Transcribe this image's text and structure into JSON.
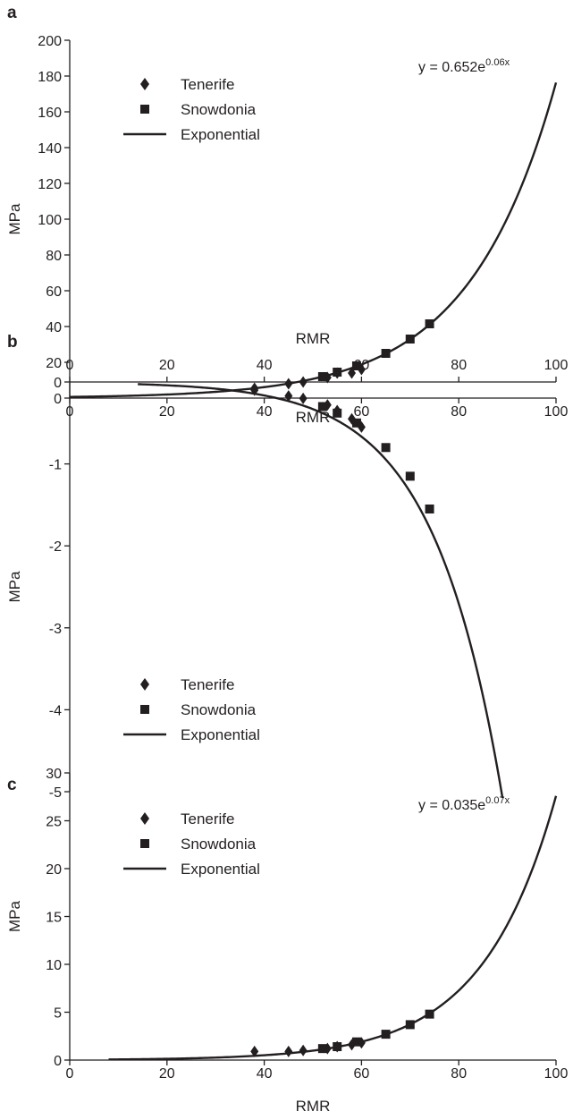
{
  "chart_data": [
    {
      "panel": "a",
      "type": "scatter",
      "xlabel": "RMR",
      "ylabel": "MPa",
      "xlim": [
        0,
        100
      ],
      "ylim": [
        0,
        200
      ],
      "xticks": [
        0,
        20,
        40,
        60,
        80,
        100
      ],
      "yticks": [
        0,
        20,
        40,
        60,
        80,
        100,
        120,
        140,
        160,
        180,
        200
      ],
      "x_axis_position": "bottom",
      "grid": false,
      "legend": {
        "position": "top-left",
        "entries": [
          "Tenerife",
          "Snowdonia",
          "Exponential"
        ]
      },
      "equation": {
        "base": "y = 0.652e",
        "exponent": "0.06x"
      },
      "series": [
        {
          "name": "Tenerife",
          "marker": "diamond",
          "points": [
            [
              38,
              5.5
            ],
            [
              45,
              8
            ],
            [
              48,
              9
            ],
            [
              53,
              11.5
            ],
            [
              55,
              14
            ],
            [
              58,
              14
            ],
            [
              60,
              16
            ]
          ]
        },
        {
          "name": "Snowdonia",
          "marker": "square",
          "points": [
            [
              52,
              12
            ],
            [
              55,
              14.5
            ],
            [
              59,
              18
            ],
            [
              65,
              25
            ],
            [
              70,
              33
            ],
            [
              74,
              41.5
            ]
          ]
        },
        {
          "name": "Exponential",
          "type": "line",
          "coef": 0.652,
          "rate": 0.056,
          "x_range": [
            0,
            100
          ]
        }
      ]
    },
    {
      "panel": "b",
      "type": "scatter",
      "xlabel": "RMR",
      "ylabel": "MPa",
      "xlim": [
        0,
        100
      ],
      "ylim": [
        -5,
        0
      ],
      "xticks": [
        0,
        20,
        40,
        60,
        80,
        100
      ],
      "yticks": [
        0,
        -1,
        -2,
        -3,
        -4,
        -5
      ],
      "x_axis_position": "top",
      "grid": false,
      "legend": {
        "position": "bottom-left",
        "entries": [
          "Tenerife",
          "Snowdonia",
          "Exponential"
        ]
      },
      "series": [
        {
          "name": "Tenerife",
          "marker": "diamond",
          "points": [
            [
              38,
              -0.1
            ],
            [
              45,
              -0.17
            ],
            [
              48,
              -0.2
            ],
            [
              53,
              -0.28
            ],
            [
              55,
              -0.35
            ],
            [
              58,
              -0.45
            ],
            [
              60,
              -0.55
            ]
          ]
        },
        {
          "name": "Snowdonia",
          "marker": "square",
          "points": [
            [
              52,
              -0.3
            ],
            [
              55,
              -0.38
            ],
            [
              59,
              -0.5
            ],
            [
              65,
              -0.8
            ],
            [
              70,
              -1.15
            ],
            [
              74,
              -1.55
            ]
          ]
        },
        {
          "name": "Exponential",
          "type": "line",
          "coef": -0.01,
          "rate": 0.07,
          "x_range": [
            14,
            89
          ]
        }
      ]
    },
    {
      "panel": "c",
      "type": "scatter",
      "xlabel": "RMR",
      "ylabel": "MPa",
      "xlim": [
        0,
        100
      ],
      "ylim": [
        0,
        30
      ],
      "xticks": [
        0,
        20,
        40,
        60,
        80,
        100
      ],
      "yticks": [
        0,
        5,
        10,
        15,
        20,
        25,
        30
      ],
      "x_axis_position": "bottom",
      "grid": false,
      "legend": {
        "position": "top-left",
        "entries": [
          "Tenerife",
          "Snowdonia",
          "Exponential"
        ]
      },
      "equation": {
        "base": "y = 0.035e",
        "exponent": "0.07x"
      },
      "series": [
        {
          "name": "Tenerife",
          "marker": "diamond",
          "points": [
            [
              38,
              0.9
            ],
            [
              45,
              0.9
            ],
            [
              48,
              1.0
            ],
            [
              53,
              1.2
            ],
            [
              55,
              1.4
            ],
            [
              58,
              1.6
            ],
            [
              60,
              1.8
            ]
          ]
        },
        {
          "name": "Snowdonia",
          "marker": "square",
          "points": [
            [
              52,
              1.2
            ],
            [
              55,
              1.4
            ],
            [
              59,
              1.9
            ],
            [
              65,
              2.7
            ],
            [
              70,
              3.7
            ],
            [
              74,
              4.8
            ]
          ]
        },
        {
          "name": "Exponential",
          "type": "line",
          "coef": 0.035,
          "rate": 0.0667,
          "x_range": [
            8,
            100
          ]
        }
      ]
    }
  ]
}
